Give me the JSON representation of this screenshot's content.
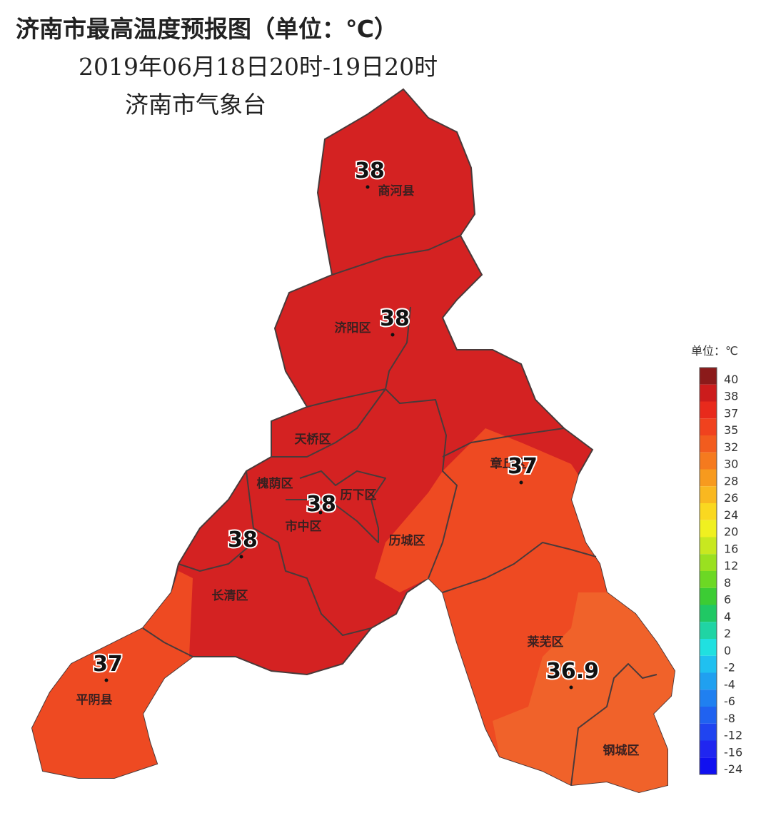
{
  "header": {
    "title": "济南市最高温度预报图（单位：℃）",
    "subtitle": "2019年06月18日20时-19日20时",
    "issuer": "济南市气象台"
  },
  "districts": [
    "商河县",
    "济阳区",
    "天桥区",
    "槐荫区",
    "历下区",
    "市中区",
    "历城区",
    "长清区",
    "章丘区",
    "平阴县",
    "莱芜区",
    "钢城区"
  ],
  "stations": [
    38,
    38,
    38,
    38,
    37,
    37,
    36.9
  ],
  "legend": {
    "title": "单位：℃",
    "levels": [
      {
        "value": 40,
        "color": "#8b1a1a"
      },
      {
        "value": 38,
        "color": "#cc1c1c"
      },
      {
        "value": 37,
        "color": "#e82a1c"
      },
      {
        "value": 35,
        "color": "#f0421e"
      },
      {
        "value": 32,
        "color": "#f25c1e"
      },
      {
        "value": 30,
        "color": "#f57a1e"
      },
      {
        "value": 28,
        "color": "#f79a1e"
      },
      {
        "value": 26,
        "color": "#f9b820"
      },
      {
        "value": 24,
        "color": "#fad820"
      },
      {
        "value": 20,
        "color": "#f0f020"
      },
      {
        "value": 16,
        "color": "#c8e820"
      },
      {
        "value": 12,
        "color": "#9ae020"
      },
      {
        "value": 8,
        "color": "#6cd824"
      },
      {
        "value": 6,
        "color": "#3ccc34"
      },
      {
        "value": 4,
        "color": "#20c864"
      },
      {
        "value": 2,
        "color": "#20d4a4"
      },
      {
        "value": 0,
        "color": "#20e0e0"
      },
      {
        "value": -2,
        "color": "#20c0f0"
      },
      {
        "value": -4,
        "color": "#20a0f0"
      },
      {
        "value": -6,
        "color": "#2080f0"
      },
      {
        "value": -8,
        "color": "#2062f0"
      },
      {
        "value": -12,
        "color": "#2044f0"
      },
      {
        "value": -16,
        "color": "#2026f0"
      },
      {
        "value": -24,
        "color": "#1010f0"
      }
    ]
  }
}
